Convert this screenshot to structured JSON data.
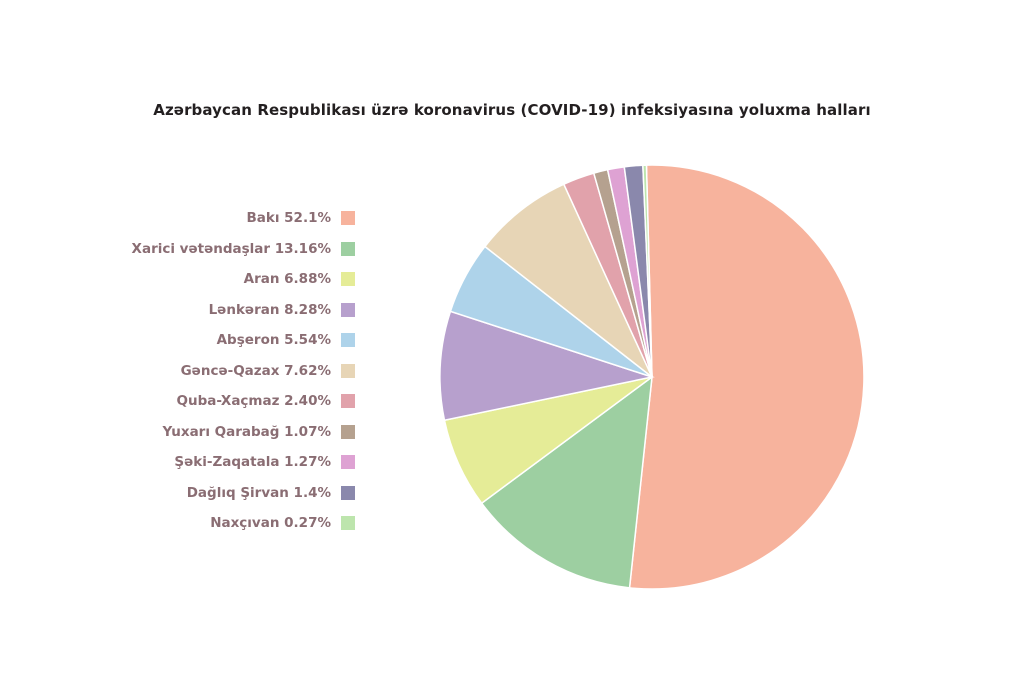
{
  "chart_data": {
    "type": "pie",
    "title": "Azərbaycan Respublikası üzrə koronavirus (COVID-19) infeksiyasına yoluxma halları",
    "legend_position": "left",
    "slices": [
      {
        "label": "Bakı 52.1%",
        "name": "Bakı",
        "value": 52.1,
        "color": "#f7b39d"
      },
      {
        "label": "Xarici vətəndaşlar 13.16%",
        "name": "Xarici vətəndaşlar",
        "value": 13.16,
        "color": "#9dcfa1"
      },
      {
        "label": "Aran 6.88%",
        "name": "Aran",
        "value": 6.88,
        "color": "#e5ec97"
      },
      {
        "label": "Lənkəran 8.28%",
        "name": "Lənkəran",
        "value": 8.28,
        "color": "#b7a0cd"
      },
      {
        "label": "Abşeron 5.54%",
        "name": "Abşeron",
        "value": 5.54,
        "color": "#aed3ea"
      },
      {
        "label": "Gəncə-Qazax 7.62%",
        "name": "Gəncə-Qazax",
        "value": 7.62,
        "color": "#e7d5b6"
      },
      {
        "label": "Quba-Xaçmaz 2.40%",
        "name": "Quba-Xaçmaz",
        "value": 2.4,
        "color": "#e1a2ab"
      },
      {
        "label": "Yuxarı Qarabağ 1.07%",
        "name": "Yuxarı Qarabağ",
        "value": 1.07,
        "color": "#b5a18f"
      },
      {
        "label": "Şəki-Zaqatala 1.27%",
        "name": "Şəki-Zaqatala",
        "value": 1.27,
        "color": "#dea2d3"
      },
      {
        "label": "Dağlıq Şirvan 1.4%",
        "name": "Dağlıq Şirvan",
        "value": 1.4,
        "color": "#8a88ac"
      },
      {
        "label": "Naxçıvan 0.27%",
        "name": "Naxçıvan",
        "value": 0.27,
        "color": "#bde5ad"
      }
    ]
  }
}
